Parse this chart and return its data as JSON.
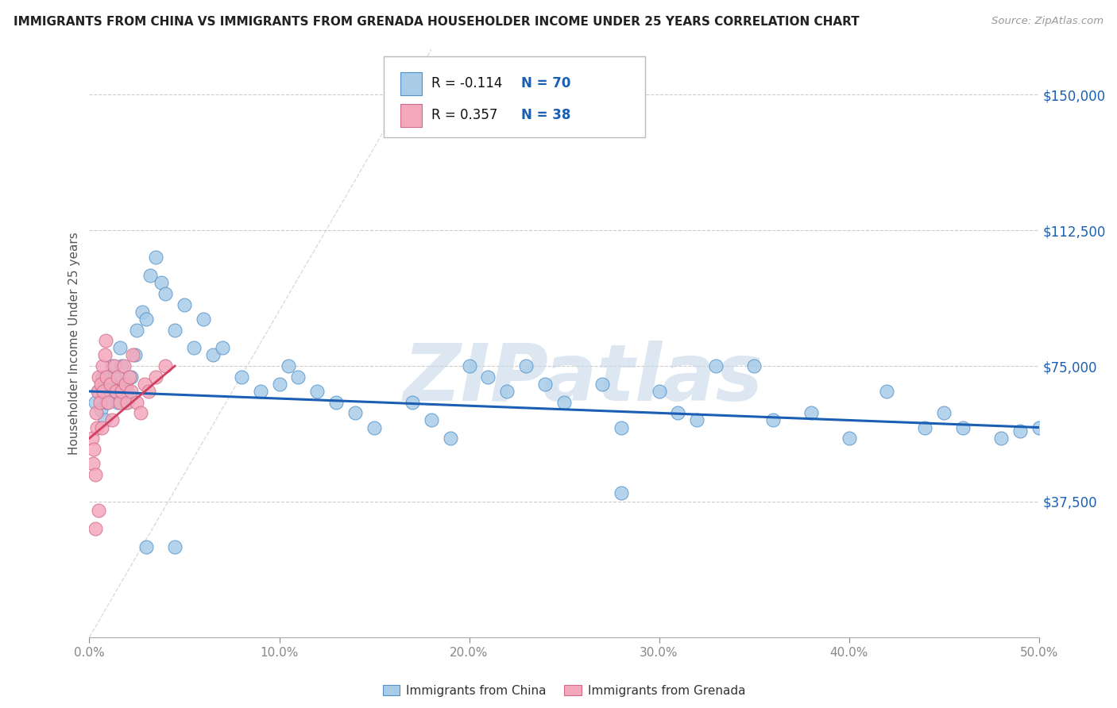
{
  "title": "IMMIGRANTS FROM CHINA VS IMMIGRANTS FROM GRENADA HOUSEHOLDER INCOME UNDER 25 YEARS CORRELATION CHART",
  "source": "Source: ZipAtlas.com",
  "ylabel": "Householder Income Under 25 years",
  "xlim": [
    0.0,
    50.0
  ],
  "ylim": [
    0,
    162500
  ],
  "yticks": [
    0,
    37500,
    75000,
    112500,
    150000
  ],
  "ytick_labels": [
    "",
    "$37,500",
    "$75,000",
    "$112,500",
    "$150,000"
  ],
  "xticks": [
    0.0,
    10.0,
    20.0,
    30.0,
    40.0,
    50.0
  ],
  "xtick_labels": [
    "0.0%",
    "10.0%",
    "20.0%",
    "30.0%",
    "40.0%",
    "50.0%"
  ],
  "china_R": -0.114,
  "china_N": 70,
  "grenada_R": 0.357,
  "grenada_N": 38,
  "china_color": "#a8cce8",
  "grenada_color": "#f4a8bc",
  "china_edge_color": "#5090c8",
  "grenada_edge_color": "#d06888",
  "china_line_color": "#1a5fb4",
  "grenada_line_color": "#d04060",
  "watermark": "ZIPatlas",
  "watermark_color": "#c5d8ea",
  "china_x": [
    0.3,
    0.5,
    0.6,
    0.7,
    0.8,
    0.9,
    1.0,
    1.1,
    1.2,
    1.3,
    1.4,
    1.5,
    1.6,
    1.7,
    1.8,
    1.9,
    2.0,
    2.2,
    2.4,
    2.5,
    2.8,
    3.0,
    3.2,
    3.5,
    3.8,
    4.0,
    4.5,
    5.0,
    5.5,
    6.0,
    6.5,
    7.0,
    8.0,
    9.0,
    10.0,
    10.5,
    11.0,
    12.0,
    13.0,
    14.0,
    15.0,
    17.0,
    18.0,
    19.0,
    20.0,
    21.0,
    22.0,
    23.0,
    24.0,
    25.0,
    27.0,
    28.0,
    30.0,
    31.0,
    32.0,
    35.0,
    36.0,
    38.0,
    40.0,
    42.0,
    44.0,
    45.0,
    46.0,
    48.0,
    49.0,
    50.0,
    33.0,
    28.0,
    4.5,
    3.0
  ],
  "china_y": [
    65000,
    68000,
    63000,
    72000,
    60000,
    65000,
    70000,
    68000,
    75000,
    72000,
    68000,
    65000,
    80000,
    75000,
    70000,
    65000,
    68000,
    72000,
    78000,
    85000,
    90000,
    88000,
    100000,
    105000,
    98000,
    95000,
    85000,
    92000,
    80000,
    88000,
    78000,
    80000,
    72000,
    68000,
    70000,
    75000,
    72000,
    68000,
    65000,
    62000,
    58000,
    65000,
    60000,
    55000,
    75000,
    72000,
    68000,
    75000,
    70000,
    65000,
    70000,
    58000,
    68000,
    62000,
    60000,
    75000,
    60000,
    62000,
    55000,
    68000,
    58000,
    62000,
    58000,
    55000,
    57000,
    58000,
    75000,
    40000,
    25000,
    25000
  ],
  "grenada_x": [
    0.15,
    0.2,
    0.25,
    0.3,
    0.35,
    0.4,
    0.45,
    0.5,
    0.55,
    0.6,
    0.65,
    0.7,
    0.75,
    0.8,
    0.85,
    0.9,
    1.0,
    1.1,
    1.2,
    1.3,
    1.4,
    1.5,
    1.6,
    1.7,
    1.8,
    1.9,
    2.0,
    2.1,
    2.2,
    2.3,
    2.5,
    2.7,
    2.9,
    3.1,
    3.5,
    4.0,
    0.3,
    0.5
  ],
  "grenada_y": [
    55000,
    48000,
    52000,
    45000,
    62000,
    58000,
    68000,
    72000,
    65000,
    70000,
    58000,
    75000,
    68000,
    78000,
    82000,
    72000,
    65000,
    70000,
    60000,
    75000,
    68000,
    72000,
    65000,
    68000,
    75000,
    70000,
    65000,
    72000,
    68000,
    78000,
    65000,
    62000,
    70000,
    68000,
    72000,
    75000,
    30000,
    35000
  ],
  "china_line_x0": 0.0,
  "china_line_y0": 68000,
  "china_line_x1": 50.0,
  "china_line_y1": 58000,
  "grenada_line_x0": 0.0,
  "grenada_line_y0": 55000,
  "grenada_line_x1": 4.5,
  "grenada_line_y1": 75000,
  "diag_x0": 0,
  "diag_y0": 0,
  "diag_x1": 18,
  "diag_y1": 162500
}
